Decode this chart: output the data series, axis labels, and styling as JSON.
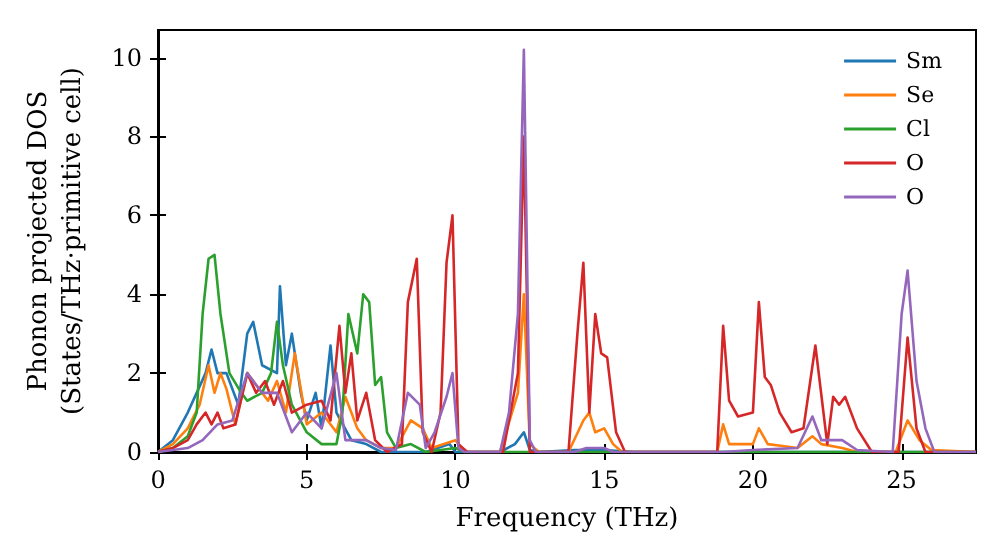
{
  "chart_data": {
    "type": "line",
    "xlabel": "Frequency (THz)",
    "ylabel": "Phonon projected DOS\n(States/THz·primitive cell)",
    "xlim": [
      0,
      27.5
    ],
    "xticks": [
      0,
      5,
      10,
      15,
      20,
      25
    ],
    "ylim": [
      0,
      10.7
    ],
    "yticks": [
      0,
      2,
      4,
      6,
      8,
      10
    ],
    "grid": false,
    "legend": "top right",
    "marker": "none",
    "line_style": "solid",
    "series": [
      {
        "name": "Sm",
        "color": "#1f77b4",
        "x": [
          0,
          0.5,
          1,
          1.3,
          1.6,
          1.8,
          2,
          2.3,
          2.7,
          3,
          3.2,
          3.5,
          4,
          4.1,
          4.3,
          4.5,
          4.8,
          5,
          5.3,
          5.5,
          5.8,
          6,
          6.5,
          7,
          7.5,
          8,
          9,
          9.8,
          10,
          11.5,
          12,
          12.3,
          12.5,
          12.8,
          14,
          15,
          16,
          27.5
        ],
        "values": [
          0,
          0.3,
          1.0,
          1.5,
          2.0,
          2.6,
          2.0,
          2.0,
          1.2,
          3.0,
          3.3,
          2.2,
          2.0,
          4.2,
          2.2,
          3.0,
          1.5,
          0.8,
          1.5,
          0.6,
          2.7,
          1.0,
          0.3,
          0.2,
          0,
          0,
          0,
          0.2,
          0,
          0,
          0.2,
          0.5,
          0.05,
          0,
          0.05,
          0.05,
          0,
          0
        ]
      },
      {
        "name": "Se",
        "color": "#ff7f0e",
        "x": [
          0,
          0.5,
          1,
          1.4,
          1.7,
          1.9,
          2.1,
          2.3,
          2.6,
          3,
          3.3,
          3.7,
          4,
          4.3,
          4.6,
          5,
          5.5,
          6,
          6.3,
          6.7,
          7,
          7.5,
          8,
          8.5,
          8.9,
          9.2,
          10,
          10.3,
          11.5,
          12.1,
          12.3,
          12.5,
          12.8,
          13.8,
          14.3,
          14.5,
          14.7,
          15,
          15.3,
          15.6,
          18.8,
          19,
          19.2,
          20,
          20.2,
          20.5,
          21,
          21.5,
          22,
          22.3,
          23,
          23.5,
          24.8,
          25.2,
          25.6,
          26,
          27.5
        ],
        "values": [
          0,
          0.2,
          0.6,
          1.2,
          2.2,
          1.5,
          2.0,
          1.6,
          0.7,
          2.0,
          1.7,
          1.3,
          1.8,
          1.0,
          2.5,
          0.7,
          1.0,
          0.5,
          1.4,
          0.6,
          0.3,
          0.1,
          0.1,
          0.8,
          0.6,
          0.1,
          0.3,
          0,
          0,
          1.5,
          4.0,
          0.2,
          0,
          0,
          0.8,
          1.0,
          0.5,
          0.6,
          0.2,
          0,
          0,
          0.7,
          0.2,
          0.2,
          0.6,
          0.2,
          0.15,
          0.1,
          0.4,
          0.2,
          0.1,
          0,
          0,
          0.8,
          0.3,
          0.05,
          0
        ]
      },
      {
        "name": "Cl",
        "color": "#2ca02c",
        "x": [
          0,
          0.5,
          1,
          1.3,
          1.5,
          1.7,
          1.9,
          2.1,
          2.4,
          2.8,
          3,
          3.5,
          3.8,
          4,
          4.2,
          4.5,
          5,
          5.5,
          6,
          6.2,
          6.4,
          6.7,
          6.9,
          7.1,
          7.3,
          7.5,
          7.7,
          8,
          8.5,
          9,
          10,
          10.3,
          27.5
        ],
        "values": [
          0,
          0.1,
          0.4,
          1.0,
          3.5,
          4.9,
          5.0,
          3.5,
          2.0,
          1.5,
          1.3,
          1.5,
          2.0,
          3.3,
          2.2,
          1.2,
          0.5,
          0.2,
          0.2,
          1.0,
          3.5,
          2.5,
          4.0,
          3.8,
          1.7,
          1.9,
          0.5,
          0.1,
          0.2,
          0,
          0.1,
          0,
          0
        ]
      },
      {
        "name": "O",
        "color": "#d62728",
        "x": [
          0,
          0.5,
          1,
          1.3,
          1.6,
          1.8,
          2,
          2.2,
          2.6,
          3,
          3.3,
          3.6,
          3.9,
          4.2,
          4.5,
          5,
          5.5,
          5.8,
          6.1,
          6.3,
          6.5,
          6.7,
          7,
          7.3,
          7.7,
          8.2,
          8.4,
          8.7,
          8.9,
          9.2,
          9.5,
          9.7,
          9.9,
          10.1,
          10.4,
          11.6,
          12.1,
          12.3,
          12.5,
          13.8,
          14.1,
          14.3,
          14.5,
          14.7,
          14.9,
          15.1,
          15.4,
          15.7,
          18.8,
          19,
          19.2,
          19.5,
          20,
          20.2,
          20.4,
          20.6,
          20.9,
          21.3,
          21.7,
          22.1,
          22.5,
          22.7,
          22.9,
          23.1,
          23.5,
          24,
          24.9,
          25.2,
          25.5,
          25.8,
          27.5
        ],
        "values": [
          0,
          0.1,
          0.3,
          0.7,
          1.0,
          0.7,
          1.0,
          0.6,
          0.7,
          2.0,
          1.5,
          1.8,
          1.2,
          1.8,
          1.0,
          1.2,
          1.3,
          0.8,
          3.2,
          1.5,
          2.5,
          0.8,
          1.5,
          0.3,
          0,
          0.2,
          3.8,
          4.9,
          0.5,
          0,
          1.0,
          4.8,
          6.0,
          0.2,
          0,
          0,
          2.0,
          8.0,
          0,
          0,
          3.0,
          4.8,
          1.0,
          3.5,
          2.5,
          2.4,
          0.5,
          0,
          0,
          3.2,
          1.3,
          0.9,
          1.0,
          3.8,
          1.9,
          1.7,
          1.0,
          0.5,
          0.6,
          2.7,
          0.2,
          1.4,
          1.2,
          1.4,
          0.6,
          0,
          0,
          2.9,
          0.6,
          0,
          0
        ]
      },
      {
        "name": "O",
        "color": "#9467bd",
        "x": [
          0,
          1,
          1.5,
          2,
          2.5,
          3,
          3.5,
          4,
          4.5,
          5,
          5.5,
          6,
          6.3,
          6.7,
          7,
          7.5,
          8,
          8.4,
          8.8,
          9,
          9.3,
          9.7,
          9.9,
          10.1,
          10.3,
          11.5,
          11.8,
          12.1,
          12.3,
          12.5,
          12.7,
          14,
          14.4,
          15,
          15.3,
          19,
          20,
          21.5,
          22,
          22.3,
          23,
          23.5,
          24.7,
          25,
          25.2,
          25.5,
          25.8,
          26.1,
          27.5
        ],
        "values": [
          0,
          0.1,
          0.3,
          0.7,
          0.8,
          2.0,
          1.5,
          1.5,
          0.5,
          1.0,
          0.6,
          2.0,
          0.3,
          0.3,
          0.3,
          0.1,
          0.05,
          1.5,
          1.2,
          0.1,
          0.5,
          1.4,
          2.0,
          0.1,
          0,
          0,
          1.0,
          3.5,
          10.2,
          0.3,
          0,
          0,
          0.1,
          0.1,
          0,
          0,
          0.05,
          0.1,
          0.9,
          0.3,
          0.3,
          0.05,
          0,
          3.5,
          4.6,
          1.8,
          0.6,
          0,
          0
        ]
      }
    ]
  }
}
